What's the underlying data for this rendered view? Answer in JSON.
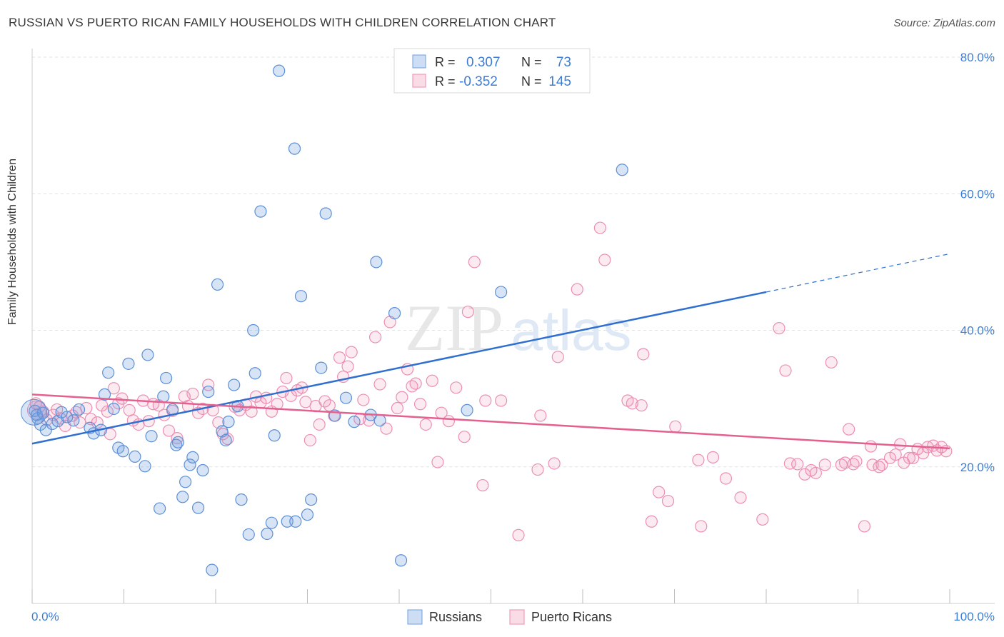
{
  "header": {
    "title": "RUSSIAN VS PUERTO RICAN FAMILY HOUSEHOLDS WITH CHILDREN CORRELATION CHART",
    "source": "Source: ZipAtlas.com"
  },
  "watermark": {
    "zip": "ZIP",
    "atlas": "atlas"
  },
  "legend_top": [
    {
      "r_label": "R =",
      "r_value": "0.307",
      "n_label": "N =",
      "n_value": "73",
      "color": "#6f9fe0"
    },
    {
      "r_label": "R =",
      "r_value": "-0.352",
      "n_label": "N =",
      "n_value": "145",
      "color": "#f08ab0"
    }
  ],
  "legend_bottom": [
    {
      "label": "Russians",
      "color": "#6f9fe0"
    },
    {
      "label": "Puerto Ricans",
      "color": "#f08ab0"
    }
  ],
  "colors": {
    "blue_fill": "rgba(111,159,224,0.28)",
    "blue_stroke": "#5d8fd6",
    "blue_line": "#2f6fd0",
    "pink_fill": "rgba(240,138,176,0.18)",
    "pink_stroke": "#ec8fb3",
    "pink_line": "#e4608f",
    "axis_label": "#3d7dd8",
    "grid": "#e1e1e1"
  },
  "chart_data": {
    "type": "scatter",
    "title": "RUSSIAN VS PUERTO RICAN FAMILY HOUSEHOLDS WITH CHILDREN CORRELATION CHART",
    "xlabel": "",
    "ylabel": "Family Households with Children",
    "xlim": [
      0,
      100
    ],
    "ylim": [
      0,
      80
    ],
    "x_tick_labels": [
      "0.0%",
      "100.0%"
    ],
    "y_ticks": [
      20,
      40,
      60,
      80
    ],
    "y_tick_labels": [
      "20.0%",
      "40.0%",
      "60.0%",
      "80.0%"
    ],
    "grid": true,
    "legend_position": "top-center",
    "series": [
      {
        "name": "Russians",
        "r": 0.307,
        "n": 73,
        "trend": {
          "x0": 0,
          "y0": 23.4,
          "x1": 80,
          "y1": 45.6,
          "dashed_to_x": 100,
          "dashed_to_y": 51.2
        },
        "points": [
          [
            0.3,
            28.2
          ],
          [
            0.6,
            27.1
          ],
          [
            0.9,
            26.2
          ],
          [
            1.5,
            25.4
          ],
          [
            2.2,
            26.3
          ],
          [
            2.8,
            26.7
          ],
          [
            3.2,
            28.0
          ],
          [
            3.8,
            27.3
          ],
          [
            4.5,
            26.8
          ],
          [
            5.1,
            28.4
          ],
          [
            6.3,
            25.7
          ],
          [
            6.7,
            24.9
          ],
          [
            7.5,
            25.4
          ],
          [
            7.9,
            30.6
          ],
          [
            8.3,
            33.8
          ],
          [
            8.9,
            28.5
          ],
          [
            9.4,
            22.8
          ],
          [
            9.9,
            22.3
          ],
          [
            10.5,
            35.1
          ],
          [
            11.2,
            21.5
          ],
          [
            12.3,
            20.1
          ],
          [
            12.6,
            36.4
          ],
          [
            13.0,
            24.5
          ],
          [
            13.9,
            13.9
          ],
          [
            14.3,
            30.3
          ],
          [
            14.6,
            33.0
          ],
          [
            15.3,
            28.4
          ],
          [
            15.7,
            23.2
          ],
          [
            15.9,
            23.6
          ],
          [
            16.4,
            15.6
          ],
          [
            16.7,
            17.8
          ],
          [
            17.2,
            20.3
          ],
          [
            17.5,
            21.4
          ],
          [
            18.1,
            14.0
          ],
          [
            18.6,
            19.5
          ],
          [
            19.2,
            31.0
          ],
          [
            19.6,
            4.9
          ],
          [
            20.2,
            46.7
          ],
          [
            20.7,
            25.2
          ],
          [
            21.1,
            23.9
          ],
          [
            21.4,
            26.6
          ],
          [
            22.0,
            32.0
          ],
          [
            22.4,
            28.9
          ],
          [
            22.8,
            15.2
          ],
          [
            23.6,
            10.1
          ],
          [
            24.1,
            40.0
          ],
          [
            24.3,
            33.7
          ],
          [
            24.9,
            57.4
          ],
          [
            25.6,
            10.2
          ],
          [
            26.1,
            11.8
          ],
          [
            26.4,
            24.6
          ],
          [
            26.9,
            78.0
          ],
          [
            27.8,
            12.0
          ],
          [
            28.6,
            66.6
          ],
          [
            28.7,
            12.0
          ],
          [
            29.3,
            45.0
          ],
          [
            30.0,
            13.0
          ],
          [
            30.4,
            15.2
          ],
          [
            31.5,
            34.5
          ],
          [
            32.0,
            57.1
          ],
          [
            33.0,
            27.5
          ],
          [
            34.2,
            30.1
          ],
          [
            35.1,
            26.6
          ],
          [
            36.9,
            27.6
          ],
          [
            37.5,
            50.0
          ],
          [
            37.9,
            26.8
          ],
          [
            39.5,
            42.5
          ],
          [
            40.2,
            6.3
          ],
          [
            47.4,
            28.3
          ],
          [
            51.1,
            45.6
          ],
          [
            64.3,
            63.5
          ],
          [
            0.5,
            27.6
          ],
          [
            1.2,
            27.9
          ]
        ]
      },
      {
        "name": "Puerto Ricans",
        "r": -0.352,
        "n": 145,
        "trend": {
          "x0": 0,
          "y0": 30.6,
          "x1": 100,
          "y1": 22.7
        },
        "points": [
          [
            0.4,
            29.3
          ],
          [
            0.8,
            28.8
          ],
          [
            1.2,
            28.1
          ],
          [
            1.6,
            26.9
          ],
          [
            2.3,
            27.6
          ],
          [
            2.7,
            28.4
          ],
          [
            3.1,
            27.1
          ],
          [
            3.6,
            26.0
          ],
          [
            4.4,
            27.5
          ],
          [
            4.8,
            28.0
          ],
          [
            5.2,
            26.5
          ],
          [
            5.9,
            28.6
          ],
          [
            6.4,
            27.0
          ],
          [
            7.1,
            26.5
          ],
          [
            7.6,
            29.0
          ],
          [
            8.2,
            28.1
          ],
          [
            8.5,
            24.8
          ],
          [
            8.9,
            31.5
          ],
          [
            9.4,
            29.3
          ],
          [
            9.8,
            30.0
          ],
          [
            10.6,
            28.3
          ],
          [
            11.0,
            26.8
          ],
          [
            11.6,
            26.2
          ],
          [
            12.1,
            29.7
          ],
          [
            12.7,
            26.7
          ],
          [
            13.2,
            29.2
          ],
          [
            13.8,
            29.0
          ],
          [
            14.4,
            27.6
          ],
          [
            14.9,
            25.3
          ],
          [
            15.3,
            28.2
          ],
          [
            15.8,
            24.2
          ],
          [
            16.6,
            30.3
          ],
          [
            17.0,
            28.9
          ],
          [
            17.5,
            30.7
          ],
          [
            18.1,
            27.9
          ],
          [
            18.6,
            28.5
          ],
          [
            19.2,
            32.0
          ],
          [
            19.7,
            28.3
          ],
          [
            20.3,
            26.5
          ],
          [
            20.8,
            24.8
          ],
          [
            21.3,
            24.1
          ],
          [
            22.1,
            28.8
          ],
          [
            22.6,
            28.3
          ],
          [
            23.3,
            29.1
          ],
          [
            23.9,
            28.1
          ],
          [
            24.4,
            30.3
          ],
          [
            24.9,
            29.4
          ],
          [
            25.5,
            30.1
          ],
          [
            26.1,
            28.1
          ],
          [
            26.7,
            29.2
          ],
          [
            27.3,
            31.0
          ],
          [
            27.7,
            33.0
          ],
          [
            28.2,
            30.4
          ],
          [
            28.9,
            31.2
          ],
          [
            29.4,
            31.6
          ],
          [
            29.8,
            29.5
          ],
          [
            30.3,
            23.9
          ],
          [
            30.9,
            28.9
          ],
          [
            31.3,
            26.2
          ],
          [
            31.9,
            29.6
          ],
          [
            32.4,
            29.0
          ],
          [
            32.9,
            27.5
          ],
          [
            33.5,
            36.0
          ],
          [
            33.9,
            33.2
          ],
          [
            34.4,
            34.7
          ],
          [
            34.8,
            36.8
          ],
          [
            35.7,
            27.0
          ],
          [
            36.1,
            29.8
          ],
          [
            36.7,
            26.8
          ],
          [
            37.4,
            39.0
          ],
          [
            37.9,
            32.1
          ],
          [
            38.6,
            25.6
          ],
          [
            39.0,
            41.2
          ],
          [
            39.8,
            28.6
          ],
          [
            40.3,
            30.2
          ],
          [
            40.9,
            34.3
          ],
          [
            41.4,
            31.8
          ],
          [
            41.8,
            32.2
          ],
          [
            42.3,
            29.2
          ],
          [
            42.9,
            26.2
          ],
          [
            43.6,
            32.6
          ],
          [
            44.2,
            20.7
          ],
          [
            44.6,
            27.9
          ],
          [
            45.4,
            26.7
          ],
          [
            46.2,
            31.6
          ],
          [
            47.1,
            24.4
          ],
          [
            47.5,
            42.7
          ],
          [
            48.2,
            50.0
          ],
          [
            49.1,
            17.3
          ],
          [
            49.4,
            29.7
          ],
          [
            51.1,
            29.7
          ],
          [
            53.0,
            10.0
          ],
          [
            55.1,
            19.6
          ],
          [
            55.4,
            27.5
          ],
          [
            56.9,
            20.5
          ],
          [
            57.3,
            36.1
          ],
          [
            59.4,
            46.0
          ],
          [
            61.9,
            55.0
          ],
          [
            62.4,
            50.3
          ],
          [
            64.9,
            29.7
          ],
          [
            65.4,
            29.3
          ],
          [
            66.4,
            29.0
          ],
          [
            66.6,
            36.5
          ],
          [
            67.5,
            12.0
          ],
          [
            68.3,
            16.3
          ],
          [
            69.3,
            15.0
          ],
          [
            70.1,
            25.9
          ],
          [
            72.6,
            21.0
          ],
          [
            72.9,
            11.3
          ],
          [
            74.2,
            21.4
          ],
          [
            75.6,
            18.3
          ],
          [
            77.2,
            15.5
          ],
          [
            79.6,
            12.3
          ],
          [
            81.4,
            40.3
          ],
          [
            82.1,
            34.1
          ],
          [
            82.6,
            20.5
          ],
          [
            83.4,
            20.4
          ],
          [
            84.2,
            18.9
          ],
          [
            84.9,
            19.5
          ],
          [
            85.4,
            19.1
          ],
          [
            86.4,
            20.3
          ],
          [
            87.1,
            35.3
          ],
          [
            88.2,
            20.3
          ],
          [
            88.6,
            20.6
          ],
          [
            89.0,
            25.5
          ],
          [
            89.5,
            20.4
          ],
          [
            89.8,
            20.8
          ],
          [
            90.7,
            11.3
          ],
          [
            91.4,
            23.0
          ],
          [
            91.6,
            20.3
          ],
          [
            92.3,
            20.0
          ],
          [
            92.6,
            20.3
          ],
          [
            93.5,
            21.3
          ],
          [
            94.1,
            21.8
          ],
          [
            94.6,
            23.3
          ],
          [
            95.0,
            20.6
          ],
          [
            95.6,
            21.3
          ],
          [
            96.0,
            21.3
          ],
          [
            96.5,
            22.6
          ],
          [
            97.1,
            22.0
          ],
          [
            97.6,
            22.9
          ],
          [
            98.2,
            23.1
          ],
          [
            98.6,
            22.4
          ],
          [
            99.1,
            22.9
          ],
          [
            99.6,
            22.3
          ]
        ]
      }
    ]
  }
}
